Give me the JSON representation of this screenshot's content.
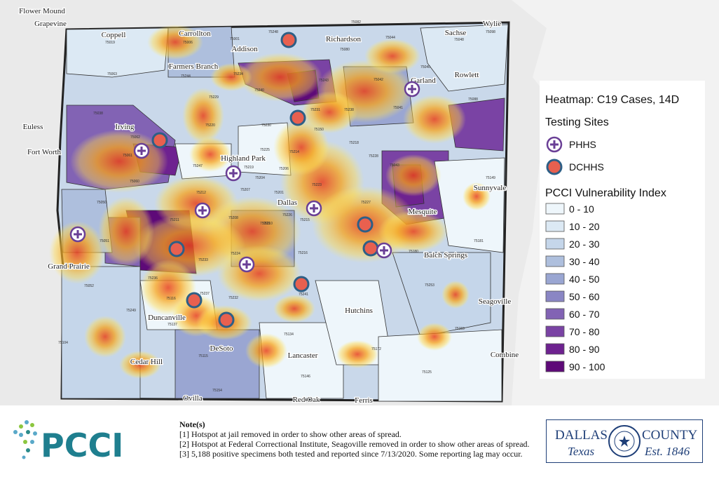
{
  "map": {
    "places": [
      "Flower Mound",
      "Grapevine",
      "Coppell",
      "Carrollton",
      "Addison",
      "Richardson",
      "Sachse",
      "Wylie",
      "Farmers Branch",
      "Garland",
      "Rowlett",
      "Euless",
      "Irving",
      "Fort Worth",
      "Highland Park",
      "Sunnyvale",
      "Dallas",
      "Mesquite",
      "Grand Prairie",
      "Balch Springs",
      "Seagoville",
      "Hutchins",
      "Duncanville",
      "DeSoto",
      "Lancaster",
      "Cedar Hill",
      "Combine",
      "Ovilla",
      "Red Oak",
      "Ferris"
    ],
    "zips": [
      "75019",
      "75006",
      "75001",
      "75248",
      "75080",
      "75082",
      "75044",
      "75048",
      "75098",
      "75063",
      "75234",
      "75244",
      "75240",
      "75243",
      "75042",
      "75040",
      "75088",
      "75038",
      "75229",
      "75231",
      "75238",
      "75041",
      "75062",
      "75220",
      "75230",
      "75225",
      "75214",
      "75218",
      "75228",
      "75043",
      "75061",
      "75247",
      "75219",
      "75209",
      "75204",
      "75206",
      "75223",
      "75150",
      "75060",
      "75212",
      "75207",
      "75201",
      "75226",
      "75210",
      "75227",
      "75149",
      "75050",
      "75211",
      "75208",
      "75203",
      "75215",
      "75180",
      "75181",
      "75051",
      "75224",
      "75216",
      "75217",
      "75052",
      "75236",
      "75233",
      "75232",
      "75241",
      "75253",
      "75116",
      "75249",
      "75137",
      "75237",
      "75134",
      "75159",
      "75104",
      "75115",
      "75146",
      "75172",
      "75154",
      "75125"
    ]
  },
  "legend": {
    "heatmap_title": "Heatmap: C19 Cases, 14D",
    "testing_title": "Testing Sites",
    "sites": [
      "PHHS",
      "DCHHS"
    ],
    "index_title": "PCCI Vulnerability Index",
    "classes": [
      {
        "label": "0 - 10",
        "color": "#eef6fb"
      },
      {
        "label": "10 - 20",
        "color": "#dce9f4"
      },
      {
        "label": "20 - 30",
        "color": "#c5d6ea"
      },
      {
        "label": "30 - 40",
        "color": "#aebfdd"
      },
      {
        "label": "40 - 50",
        "color": "#9aa6d2"
      },
      {
        "label": "50 - 60",
        "color": "#8a86c4"
      },
      {
        "label": "60 - 70",
        "color": "#8263b4"
      },
      {
        "label": "70 - 80",
        "color": "#7a43a4"
      },
      {
        "label": "80 - 90",
        "color": "#6e2290"
      },
      {
        "label": "90 - 100",
        "color": "#5e0a78"
      }
    ]
  },
  "footer": {
    "logo": "PCCI",
    "notes_heading": "Note(s)",
    "notes": [
      "[1] Hotspot at jail removed in order to show other areas of spread.",
      "[2] Hotspot at Federal Correctional Institute, Seagoville removed in order to show other areas of spread.",
      "[3] 5,188 positive specimens both tested and reported since 7/13/2020. Some reporting lag may occur."
    ],
    "county_left": "DALLAS",
    "county_right": "COUNTY",
    "county_sub_left": "Texas",
    "county_sub_right": "Est. 1846"
  }
}
